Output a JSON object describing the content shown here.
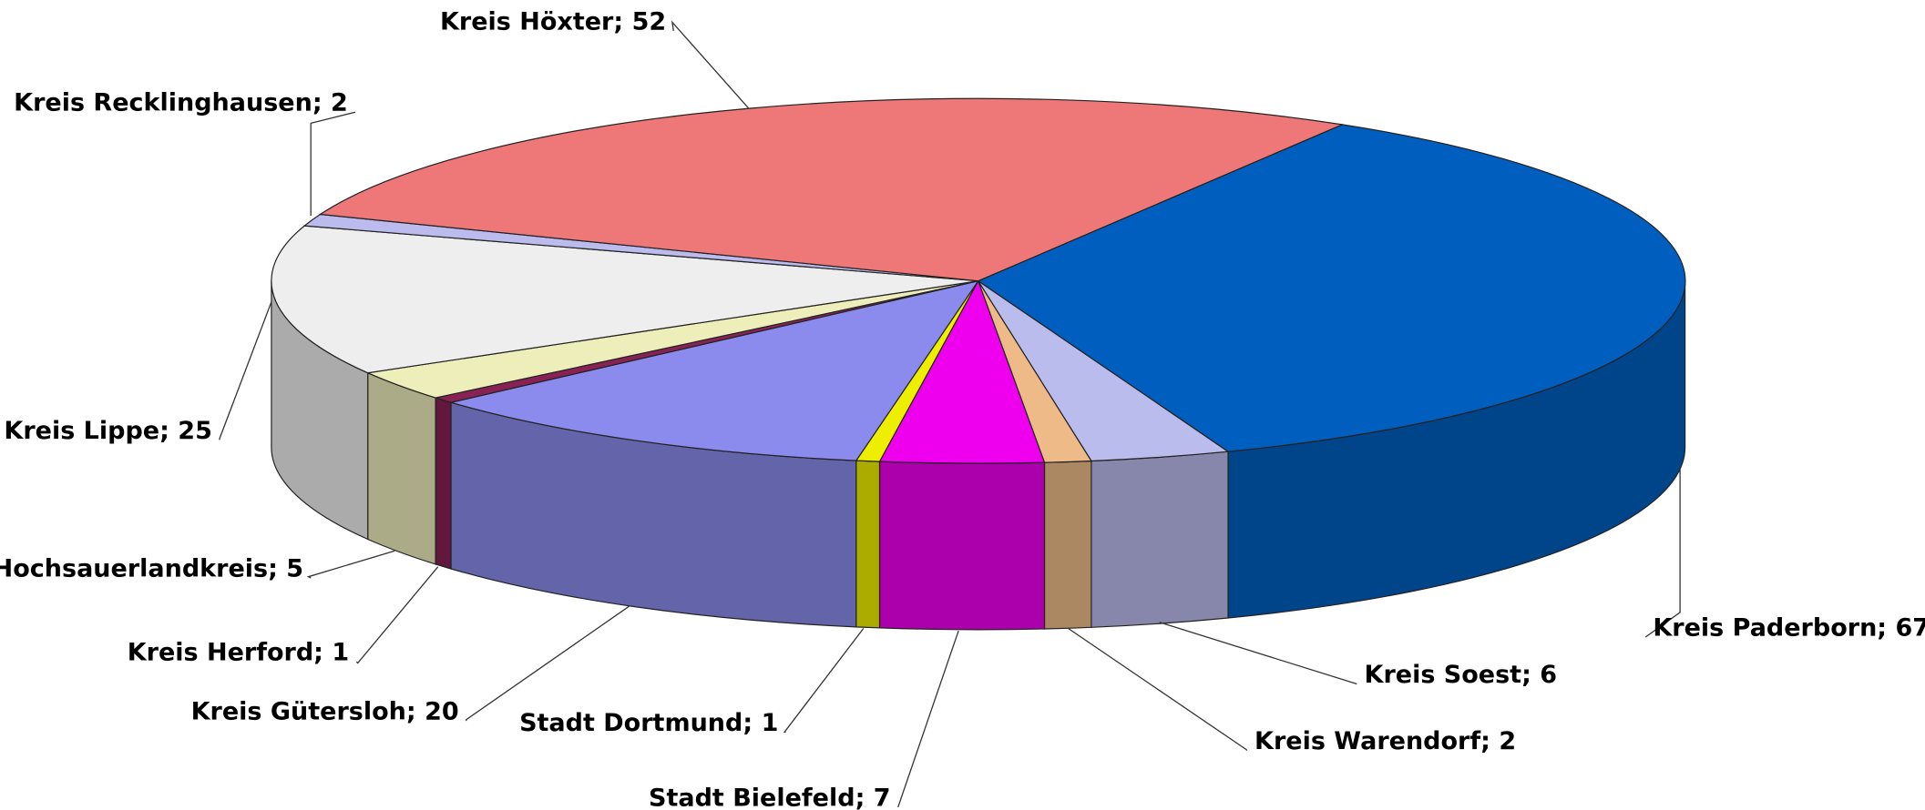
{
  "chart_data": {
    "type": "pie3d",
    "categories": [
      "Kreis Paderborn",
      "Kreis Soest",
      "Kreis Warendorf",
      "Stadt Bielefeld",
      "Stadt Dortmund",
      "Kreis Gütersloh",
      "Kreis Herford",
      "Hochsauerlandkreis",
      "Kreis Lippe",
      "Kreis Recklinghausen",
      "Kreis Höxter"
    ],
    "values": [
      67,
      6,
      2,
      7,
      1,
      20,
      1,
      5,
      25,
      2,
      52
    ],
    "colors": [
      "#005ebf",
      "#bbbcee",
      "#eebb88",
      "#ee00ee",
      "#eeee00",
      "#8b8bee",
      "#882255",
      "#eeeebb",
      "#eeeeee",
      "#bbbbee",
      "#ee7777"
    ],
    "label_separator": "; "
  }
}
